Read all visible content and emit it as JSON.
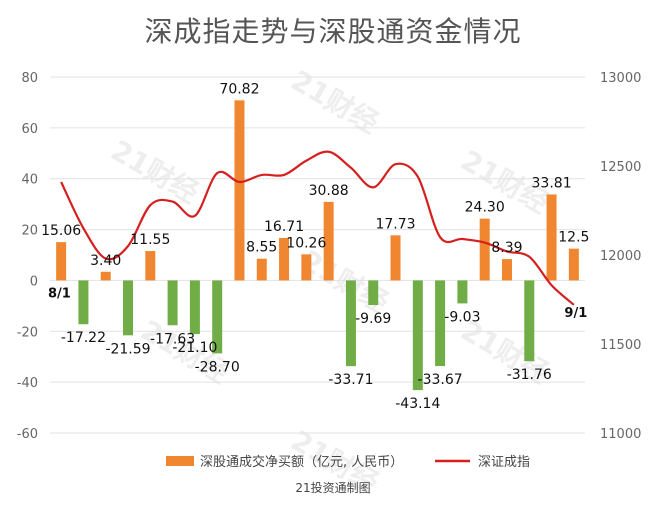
{
  "chart_data": {
    "type": "bar+line",
    "title": "深成指走势与深股通资金情况",
    "left_axis": {
      "min": -60,
      "max": 80,
      "ticks": [
        80,
        60,
        40,
        20,
        0,
        -20,
        -40,
        -60
      ]
    },
    "right_axis": {
      "min": 11000,
      "max": 13000,
      "ticks": [
        13000,
        12500,
        12000,
        11500,
        11000
      ]
    },
    "bar_series": {
      "name": "深股通成交净买额（亿元, 人民币）",
      "color": "#f0862f",
      "negative_color": "#70ad47",
      "values": [
        15.06,
        -17.22,
        3.4,
        -21.59,
        11.55,
        -17.63,
        -21.1,
        -28.7,
        70.82,
        8.55,
        16.71,
        10.26,
        30.88,
        -33.71,
        -9.69,
        17.73,
        -43.14,
        -33.67,
        -9.03,
        24.3,
        8.39,
        -31.76,
        33.81,
        12.5
      ],
      "labels": [
        "15.06",
        "-17.22",
        "3.40",
        "-21.59",
        "11.55",
        "-17.63",
        "-21.10",
        "-28.70",
        "70.82",
        "8.55",
        "16.71",
        "10.26",
        "30.88",
        "-33.71",
        "-9.69",
        "17.73",
        "-43.14",
        "-33.67",
        "-9.03",
        "24.30",
        "8.39",
        "-31.76",
        "33.81",
        "12.5"
      ]
    },
    "line_series": {
      "name": "深证成指",
      "color": "#d62020",
      "values": [
        12410,
        12150,
        11980,
        12050,
        12280,
        12300,
        12220,
        12460,
        12410,
        12450,
        12450,
        12530,
        12580,
        12490,
        12380,
        12510,
        12440,
        12100,
        12090,
        12070,
        12020,
        11990,
        11830,
        11720
      ]
    },
    "start_label": "8/1",
    "end_label": "9/1",
    "source": "21投资通制图",
    "watermark": "21财经"
  }
}
